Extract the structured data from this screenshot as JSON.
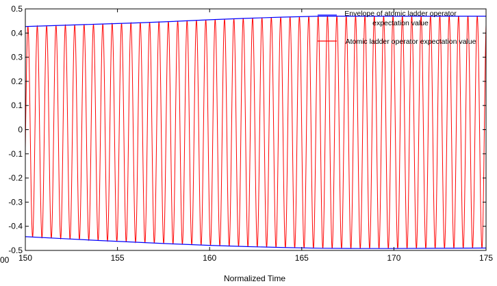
{
  "chart_data": {
    "type": "line",
    "title": "",
    "xlabel": "Normalized Time",
    "ylabel": "",
    "xlim": [
      150,
      175
    ],
    "ylim": [
      -0.5,
      0.5
    ],
    "x_ticks": [
      150,
      155,
      160,
      165,
      170,
      175
    ],
    "x_tick_labels": [
      "150",
      "155",
      "160",
      "165",
      "170",
      "175"
    ],
    "y_ticks": [
      0.5,
      0.4,
      0.3,
      0.2,
      0.1,
      0,
      -0.1,
      -0.2,
      -0.3,
      -0.4,
      -0.5
    ],
    "y_tick_labels": [
      "0.5",
      "0.4",
      "0.3",
      "0.2",
      "0.1",
      "0",
      "-0.1",
      "-0.2",
      "-0.3",
      "-0.4",
      "-0.5"
    ],
    "cut_off_left_tick_label": "00",
    "grid": false,
    "legend_position": "top-right",
    "series": [
      {
        "name": "Envelope of atomic ladder operator expectation value",
        "color": "#0000ff",
        "upper": {
          "x": [
            150,
            152,
            154,
            156,
            158,
            160,
            162,
            164,
            166,
            175
          ],
          "y": [
            0.427,
            0.432,
            0.437,
            0.442,
            0.448,
            0.455,
            0.461,
            0.466,
            0.47,
            0.47
          ]
        },
        "lower": {
          "x": [
            150,
            152,
            154,
            156,
            158,
            160,
            162,
            164,
            166,
            168,
            170,
            175
          ],
          "y": [
            -0.443,
            -0.451,
            -0.459,
            -0.466,
            -0.473,
            -0.479,
            -0.484,
            -0.488,
            -0.491,
            -0.492,
            -0.492,
            -0.49
          ]
        }
      },
      {
        "name": "Atomic ladder operator expectation value",
        "color": "#ff0000",
        "oscillation": {
          "period": 0.508,
          "first_peak_x": 150.14,
          "note_value": "cosine between the envelope curves"
        }
      }
    ]
  }
}
